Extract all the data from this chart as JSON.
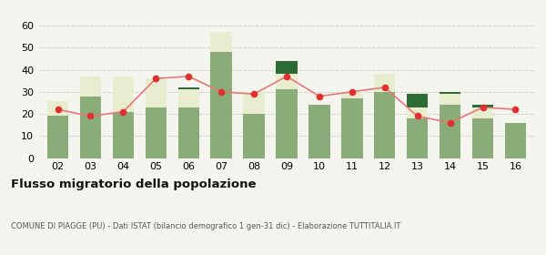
{
  "years": [
    "02",
    "03",
    "04",
    "05",
    "06",
    "07",
    "08",
    "09",
    "10",
    "11",
    "12",
    "13",
    "14",
    "15",
    "16"
  ],
  "iscritti_comuni": [
    19,
    28,
    21,
    23,
    23,
    48,
    20,
    31,
    24,
    27,
    30,
    18,
    24,
    18,
    16
  ],
  "iscritti_estero": [
    7,
    9,
    16,
    13,
    8,
    9,
    10,
    7,
    0,
    3,
    8,
    5,
    5,
    5,
    0
  ],
  "iscritti_altri": [
    0,
    0,
    0,
    0,
    1,
    0,
    0,
    6,
    0,
    0,
    0,
    6,
    1,
    1,
    0
  ],
  "cancellati": [
    22,
    19,
    21,
    36,
    37,
    30,
    29,
    37,
    28,
    30,
    32,
    19,
    16,
    23,
    22
  ],
  "color_comuni": "#8aac78",
  "color_estero": "#e8edcf",
  "color_altri": "#2d6b34",
  "color_cancellati": "#e03030",
  "color_line": "#e87878",
  "ylim": [
    0,
    60
  ],
  "yticks": [
    0,
    10,
    20,
    30,
    40,
    50,
    60
  ],
  "title": "Flusso migratorio della popolazione",
  "subtitle": "COMUNE DI PIAGGE (PU) - Dati ISTAT (bilancio demografico 1 gen-31 dic) - Elaborazione TUTTITALIA.IT",
  "bg_color": "#f5f5f0"
}
